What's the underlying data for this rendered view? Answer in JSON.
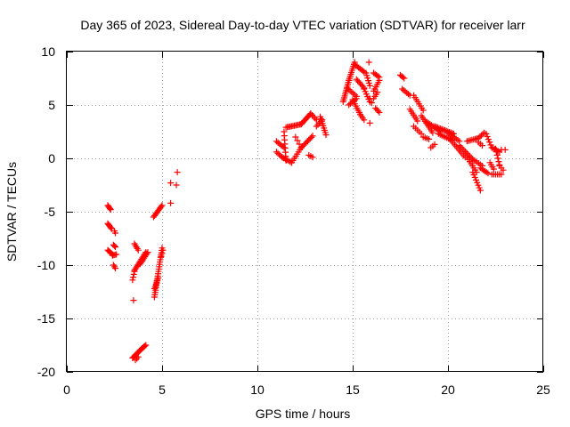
{
  "chart_data": {
    "type": "scatter",
    "title": "Day 365 of 2023, Sidereal Day-to-day VTEC variation (SDTVAR) for receiver larr",
    "xlabel": "GPS time / hours",
    "ylabel": "SDTVAR / TECUs",
    "xlim": [
      0,
      25
    ],
    "ylim": [
      -20,
      10
    ],
    "xticks": [
      0,
      5,
      10,
      15,
      20,
      25
    ],
    "yticks": [
      -20,
      -15,
      -10,
      -5,
      0,
      5,
      10
    ],
    "xtick_labels": [
      "0",
      "5",
      "10",
      "15",
      "20",
      "25"
    ],
    "ytick_labels": [
      "-20",
      "-15",
      "-10",
      "-5",
      "0",
      "5",
      "10"
    ],
    "grid": true,
    "marker": "plus",
    "color": "#ff0000",
    "segments": [
      {
        "x0": 2.15,
        "y0": -4.4,
        "x1": 2.3,
        "y1": -4.8,
        "n": 5
      },
      {
        "x0": 2.15,
        "y0": -6.1,
        "x1": 2.35,
        "y1": -6.6,
        "n": 6
      },
      {
        "x0": 2.5,
        "y0": -6.8,
        "x1": 2.55,
        "y1": -7.0,
        "n": 2
      },
      {
        "x0": 2.15,
        "y0": -8.6,
        "x1": 2.4,
        "y1": -9.0,
        "n": 6
      },
      {
        "x0": 2.45,
        "y0": -8.1,
        "x1": 2.55,
        "y1": -8.3,
        "n": 3
      },
      {
        "x0": 2.4,
        "y0": -9.1,
        "x1": 2.6,
        "y1": -9.0,
        "n": 4
      },
      {
        "x0": 2.45,
        "y0": -10.0,
        "x1": 2.55,
        "y1": -10.3,
        "n": 3
      },
      {
        "x0": 3.45,
        "y0": -11.4,
        "x1": 3.55,
        "y1": -10.6,
        "n": 4
      },
      {
        "x0": 3.55,
        "y0": -10.5,
        "x1": 4.15,
        "y1": -8.8,
        "n": 14
      },
      {
        "x0": 3.55,
        "y0": -8.0,
        "x1": 3.75,
        "y1": -8.6,
        "n": 5
      },
      {
        "x0": 3.85,
        "y0": -9.9,
        "x1": 4.25,
        "y1": -8.8,
        "n": 9
      },
      {
        "x0": 3.5,
        "y0": -13.3,
        "x1": 3.5,
        "y1": -13.3,
        "n": 1
      },
      {
        "x0": 3.45,
        "y0": -18.7,
        "x1": 3.95,
        "y1": -17.8,
        "n": 11
      },
      {
        "x0": 3.95,
        "y0": -17.8,
        "x1": 4.15,
        "y1": -17.5,
        "n": 5
      },
      {
        "x0": 3.6,
        "y0": -18.9,
        "x1": 3.75,
        "y1": -18.6,
        "n": 3
      },
      {
        "x0": 4.6,
        "y0": -13.0,
        "x1": 5.0,
        "y1": -8.4,
        "n": 22
      },
      {
        "x0": 4.6,
        "y0": -12.2,
        "x1": 4.8,
        "y1": -11.2,
        "n": 6
      },
      {
        "x0": 4.95,
        "y0": -9.2,
        "x1": 5.05,
        "y1": -8.6,
        "n": 3
      },
      {
        "x0": 4.55,
        "y0": -5.5,
        "x1": 5.0,
        "y1": -4.4,
        "n": 10
      },
      {
        "x0": 5.45,
        "y0": -4.2,
        "x1": 5.45,
        "y1": -4.2,
        "n": 1
      },
      {
        "x0": 5.45,
        "y0": -2.3,
        "x1": 5.45,
        "y1": -2.3,
        "n": 1
      },
      {
        "x0": 5.75,
        "y0": -2.5,
        "x1": 5.75,
        "y1": -2.5,
        "n": 1
      },
      {
        "x0": 5.8,
        "y0": -1.3,
        "x1": 5.8,
        "y1": -1.3,
        "n": 1
      },
      {
        "x0": 11.0,
        "y0": 1.6,
        "x1": 11.4,
        "y1": 1.0,
        "n": 6
      },
      {
        "x0": 11.0,
        "y0": 0.6,
        "x1": 11.3,
        "y1": 0.1,
        "n": 5
      },
      {
        "x0": 11.3,
        "y0": 0.1,
        "x1": 11.8,
        "y1": -0.4,
        "n": 7
      },
      {
        "x0": 11.4,
        "y0": 2.5,
        "x1": 11.5,
        "y1": -0.2,
        "n": 8
      },
      {
        "x0": 11.5,
        "y0": 2.9,
        "x1": 12.3,
        "y1": 3.2,
        "n": 12
      },
      {
        "x0": 12.3,
        "y0": 3.2,
        "x1": 12.8,
        "y1": 4.2,
        "n": 10
      },
      {
        "x0": 11.8,
        "y0": -0.4,
        "x1": 12.3,
        "y1": 1.0,
        "n": 8
      },
      {
        "x0": 12.3,
        "y0": 1.0,
        "x1": 12.9,
        "y1": 2.1,
        "n": 10
      },
      {
        "x0": 12.0,
        "y0": 2.0,
        "x1": 12.3,
        "y1": 1.0,
        "n": 4
      },
      {
        "x0": 12.8,
        "y0": 4.2,
        "x1": 13.1,
        "y1": 3.6,
        "n": 5
      },
      {
        "x0": 12.7,
        "y0": 0.3,
        "x1": 12.9,
        "y1": 0.1,
        "n": 3
      },
      {
        "x0": 13.3,
        "y0": 3.9,
        "x1": 13.6,
        "y1": 2.2,
        "n": 9
      },
      {
        "x0": 13.1,
        "y0": 3.0,
        "x1": 13.4,
        "y1": 3.6,
        "n": 5
      },
      {
        "x0": 14.5,
        "y0": 5.3,
        "x1": 14.8,
        "y1": 7.3,
        "n": 12
      },
      {
        "x0": 14.8,
        "y0": 7.3,
        "x1": 15.1,
        "y1": 9.0,
        "n": 10
      },
      {
        "x0": 14.7,
        "y0": 6.6,
        "x1": 15.2,
        "y1": 5.8,
        "n": 7
      },
      {
        "x0": 14.8,
        "y0": 5.0,
        "x1": 15.2,
        "y1": 5.6,
        "n": 6
      },
      {
        "x0": 15.1,
        "y0": 8.8,
        "x1": 15.6,
        "y1": 8.1,
        "n": 8
      },
      {
        "x0": 15.2,
        "y0": 7.4,
        "x1": 15.6,
        "y1": 6.6,
        "n": 7
      },
      {
        "x0": 15.0,
        "y0": 5.5,
        "x1": 15.4,
        "y1": 4.1,
        "n": 8
      },
      {
        "x0": 15.4,
        "y0": 4.1,
        "x1": 15.6,
        "y1": 3.6,
        "n": 4
      },
      {
        "x0": 15.6,
        "y0": 6.5,
        "x1": 15.9,
        "y1": 5.3,
        "n": 6
      },
      {
        "x0": 15.7,
        "y0": 8.0,
        "x1": 15.9,
        "y1": 6.8,
        "n": 6
      },
      {
        "x0": 15.85,
        "y0": 9.0,
        "x1": 15.85,
        "y1": 9.0,
        "n": 1
      },
      {
        "x0": 15.9,
        "y0": 3.3,
        "x1": 15.9,
        "y1": 3.3,
        "n": 1
      },
      {
        "x0": 15.9,
        "y0": 5.6,
        "x1": 16.0,
        "y1": 5.2,
        "n": 2
      },
      {
        "x0": 16.1,
        "y0": 8.0,
        "x1": 16.4,
        "y1": 7.6,
        "n": 5
      },
      {
        "x0": 16.1,
        "y0": 6.3,
        "x1": 16.4,
        "y1": 7.3,
        "n": 6
      },
      {
        "x0": 16.1,
        "y0": 5.6,
        "x1": 16.3,
        "y1": 6.2,
        "n": 4
      },
      {
        "x0": 16.2,
        "y0": 4.7,
        "x1": 16.4,
        "y1": 4.3,
        "n": 4
      },
      {
        "x0": 17.5,
        "y0": 7.8,
        "x1": 17.7,
        "y1": 7.5,
        "n": 4
      },
      {
        "x0": 17.6,
        "y0": 6.5,
        "x1": 18.0,
        "y1": 5.9,
        "n": 6
      },
      {
        "x0": 18.0,
        "y0": 4.6,
        "x1": 18.4,
        "y1": 3.5,
        "n": 7
      },
      {
        "x0": 18.2,
        "y0": 5.9,
        "x1": 18.7,
        "y1": 4.5,
        "n": 8
      },
      {
        "x0": 18.6,
        "y0": 4.0,
        "x1": 19.2,
        "y1": 2.4,
        "n": 10
      },
      {
        "x0": 18.2,
        "y0": 3.0,
        "x1": 18.6,
        "y1": 2.3,
        "n": 5
      },
      {
        "x0": 18.7,
        "y0": 2.0,
        "x1": 19.0,
        "y1": 1.8,
        "n": 4
      },
      {
        "x0": 19.1,
        "y0": 1.0,
        "x1": 19.3,
        "y1": 1.3,
        "n": 3
      },
      {
        "x0": 18.9,
        "y0": 3.4,
        "x1": 19.6,
        "y1": 2.5,
        "n": 10
      },
      {
        "x0": 19.3,
        "y0": 3.0,
        "x1": 20.3,
        "y1": 2.3,
        "n": 14
      },
      {
        "x0": 19.5,
        "y0": 2.3,
        "x1": 20.2,
        "y1": 1.7,
        "n": 9
      },
      {
        "x0": 20.0,
        "y0": 2.4,
        "x1": 20.6,
        "y1": 1.6,
        "n": 8
      },
      {
        "x0": 20.2,
        "y0": 1.6,
        "x1": 20.9,
        "y1": 0.1,
        "n": 10
      },
      {
        "x0": 20.6,
        "y0": 1.2,
        "x1": 21.3,
        "y1": -0.1,
        "n": 10
      },
      {
        "x0": 21.0,
        "y0": 0.1,
        "x1": 21.5,
        "y1": -1.3,
        "n": 8
      },
      {
        "x0": 21.3,
        "y0": -1.3,
        "x1": 21.7,
        "y1": -3.0,
        "n": 8
      },
      {
        "x0": 21.3,
        "y0": -0.1,
        "x1": 21.8,
        "y1": -0.7,
        "n": 6
      },
      {
        "x0": 21.7,
        "y0": -0.9,
        "x1": 22.1,
        "y1": -1.4,
        "n": 6
      },
      {
        "x0": 21.0,
        "y0": 1.6,
        "x1": 21.6,
        "y1": 1.9,
        "n": 8
      },
      {
        "x0": 21.6,
        "y0": 1.9,
        "x1": 21.9,
        "y1": 2.4,
        "n": 5
      },
      {
        "x0": 21.6,
        "y0": 1.5,
        "x1": 21.8,
        "y1": 1.2,
        "n": 3
      },
      {
        "x0": 22.0,
        "y0": 2.3,
        "x1": 22.3,
        "y1": 1.0,
        "n": 6
      },
      {
        "x0": 22.2,
        "y0": -0.4,
        "x1": 22.4,
        "y1": -1.0,
        "n": 4
      },
      {
        "x0": 22.3,
        "y0": 1.0,
        "x1": 22.7,
        "y1": 0.6,
        "n": 6
      },
      {
        "x0": 22.5,
        "y0": 0.9,
        "x1": 22.7,
        "y1": -0.6,
        "n": 6
      },
      {
        "x0": 22.3,
        "y0": -1.5,
        "x1": 22.8,
        "y1": -1.5,
        "n": 6
      },
      {
        "x0": 22.7,
        "y0": -0.7,
        "x1": 22.9,
        "y1": -1.1,
        "n": 3
      },
      {
        "x0": 22.8,
        "y0": 0.8,
        "x1": 23.0,
        "y1": 0.8,
        "n": 2
      }
    ]
  }
}
